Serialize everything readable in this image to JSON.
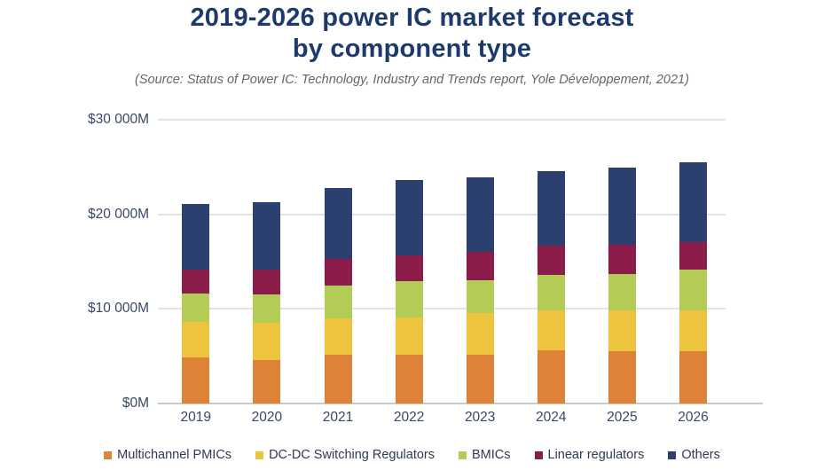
{
  "title": {
    "line1": "2019-2026 power IC market forecast",
    "line2": "by component type",
    "full": "2019-2026 power IC market forecast by component type"
  },
  "subtitle": "(Source: Status of Power IC: Technology, Industry and Trends report, Yole Développement, 2021)",
  "colors": {
    "title_text": "#1E3A6D",
    "subtitle_text": "#666666",
    "axis_text": "#3A4766",
    "legend_text": "#2E3A52",
    "gridline": "#E2E2E2",
    "baseline": "#C9C9C9",
    "background": "#FFFFFF"
  },
  "chart_data": {
    "type": "bar",
    "stacked": true,
    "title": "2019-2026 power IC market forecast by component type",
    "xlabel": "",
    "ylabel": "",
    "unit": "$M",
    "categories": [
      "2019",
      "2020",
      "2021",
      "2022",
      "2023",
      "2024",
      "2025",
      "2026"
    ],
    "series": [
      {
        "name": "Multichannel PMICs",
        "color": "#DD8236",
        "values": [
          4900,
          4600,
          5200,
          5200,
          5200,
          5600,
          5500,
          5500
        ]
      },
      {
        "name": "DC-DC Switching Regulators",
        "color": "#EEC43F",
        "values": [
          3700,
          3900,
          3800,
          3900,
          4400,
          4200,
          4300,
          4300
        ]
      },
      {
        "name": "BMICs",
        "color": "#B3CC55",
        "values": [
          3000,
          3000,
          3500,
          3800,
          3400,
          3800,
          3900,
          4400
        ]
      },
      {
        "name": "Linear regulators",
        "color": "#8C1C49",
        "values": [
          2600,
          2700,
          2800,
          2800,
          3000,
          3100,
          3100,
          2900
        ]
      },
      {
        "name": "Others",
        "color": "#2C406F",
        "values": [
          6900,
          7100,
          7500,
          7900,
          7900,
          7900,
          8100,
          8400
        ]
      }
    ],
    "totals": [
      21100,
      21300,
      22800,
      23600,
      23900,
      24600,
      24900,
      25500
    ],
    "ylim": [
      0,
      30000
    ],
    "yticks": [
      {
        "value": 30000,
        "label": "$30 000M"
      },
      {
        "value": 20000,
        "label": "$20 000M"
      },
      {
        "value": 10000,
        "label": "$10 000M"
      },
      {
        "value": 0,
        "label": "$0M"
      }
    ],
    "grid": true,
    "legend_position": "bottom"
  }
}
